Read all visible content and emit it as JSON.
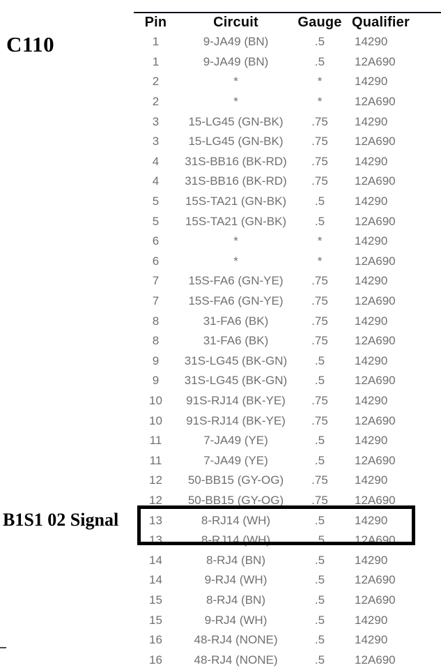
{
  "labels": {
    "connector": "C110",
    "signal": "B1S1 02 Signal"
  },
  "table": {
    "headers": [
      "Pin",
      "Circuit",
      "Gauge",
      "Qualifier"
    ],
    "rows": [
      [
        "1",
        "9-JA49 (BN)",
        ".5",
        "14290"
      ],
      [
        "1",
        "9-JA49 (BN)",
        ".5",
        "12A690"
      ],
      [
        "2",
        "*",
        "*",
        "14290"
      ],
      [
        "2",
        "*",
        "*",
        "12A690"
      ],
      [
        "3",
        "15-LG45 (GN-BK)",
        ".75",
        "14290"
      ],
      [
        "3",
        "15-LG45 (GN-BK)",
        ".75",
        "12A690"
      ],
      [
        "4",
        "31S-BB16 (BK-RD)",
        ".75",
        "14290"
      ],
      [
        "4",
        "31S-BB16 (BK-RD)",
        ".75",
        "12A690"
      ],
      [
        "5",
        "15S-TA21 (GN-BK)",
        ".5",
        "14290"
      ],
      [
        "5",
        "15S-TA21 (GN-BK)",
        ".5",
        "12A690"
      ],
      [
        "6",
        "*",
        "*",
        "14290"
      ],
      [
        "6",
        "*",
        "*",
        "12A690"
      ],
      [
        "7",
        "15S-FA6 (GN-YE)",
        ".75",
        "14290"
      ],
      [
        "7",
        "15S-FA6 (GN-YE)",
        ".75",
        "12A690"
      ],
      [
        "8",
        "31-FA6 (BK)",
        ".75",
        "14290"
      ],
      [
        "8",
        "31-FA6 (BK)",
        ".75",
        "12A690"
      ],
      [
        "9",
        "31S-LG45 (BK-GN)",
        ".5",
        "14290"
      ],
      [
        "9",
        "31S-LG45 (BK-GN)",
        ".5",
        "12A690"
      ],
      [
        "10",
        "91S-RJ14 (BK-YE)",
        ".75",
        "14290"
      ],
      [
        "10",
        "91S-RJ14 (BK-YE)",
        ".75",
        "12A690"
      ],
      [
        "11",
        "7-JA49 (YE)",
        ".5",
        "14290"
      ],
      [
        "11",
        "7-JA49 (YE)",
        ".5",
        "12A690"
      ],
      [
        "12",
        "50-BB15 (GY-OG)",
        ".75",
        "14290"
      ],
      [
        "12",
        "50-BB15 (GY-OG)",
        ".75",
        "12A690"
      ],
      [
        "13",
        "8-RJ14 (WH)",
        ".5",
        "14290"
      ],
      [
        "13",
        "8-RJ14 (WH)",
        ".5",
        "12A690"
      ],
      [
        "14",
        "8-RJ4 (BN)",
        ".5",
        "14290"
      ],
      [
        "14",
        "9-RJ4 (WH)",
        ".5",
        "12A690"
      ],
      [
        "15",
        "8-RJ4 (BN)",
        ".5",
        "12A690"
      ],
      [
        "15",
        "9-RJ4 (WH)",
        ".5",
        "14290"
      ],
      [
        "16",
        "48-RJ4 (NONE)",
        ".5",
        "14290"
      ],
      [
        "16",
        "48-RJ4 (NONE)",
        ".5",
        "12A690"
      ]
    ],
    "highlighted_row_indices": [
      24,
      25
    ]
  },
  "colors": {
    "background": "#ffffff",
    "header_text": "#0b0b0b",
    "body_text": "#707070",
    "label_text": "#000000",
    "highlight_border": "#000000"
  }
}
